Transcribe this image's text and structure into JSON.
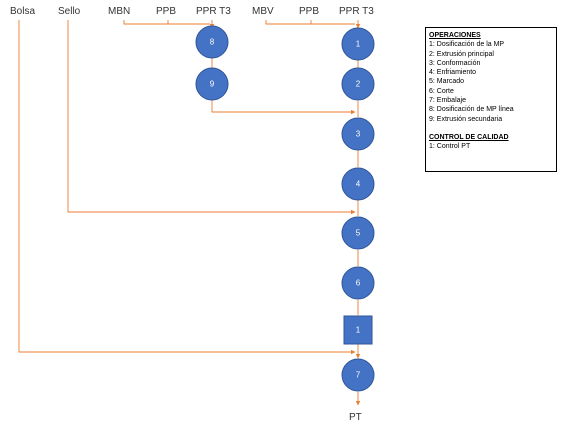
{
  "headers": {
    "bolsa": "Bolsa",
    "sello": "Sello",
    "mbn": "MBN",
    "ppb1": "PPB",
    "pprt3_1": "PPR T3",
    "mbv": "MBV",
    "ppb2": "PPB",
    "pprt3_2": "PPR T3"
  },
  "nodes": {
    "op8": "8",
    "op9": "9",
    "op1": "1",
    "op2": "2",
    "op3": "3",
    "op4": "4",
    "op5": "5",
    "op6": "6",
    "qc1": "1",
    "op7": "7"
  },
  "output_label": "PT",
  "legend": {
    "operations_title": "OPERACIONES",
    "operations": [
      "1: Dosificación de la MP",
      "2: Extrusión principal",
      "3: Conformación",
      "4: Enfriamiento",
      "5: Marcado",
      "6: Corte",
      "7: Embalaje",
      "8: Dosificación de MP línea",
      "9: Extrusión secundaria"
    ],
    "quality_title": "CONTROL DE CALIDAD",
    "quality": [
      "1: Control PT"
    ]
  },
  "colors": {
    "node_fill": "#4472C4",
    "line": "#ED7D31"
  }
}
